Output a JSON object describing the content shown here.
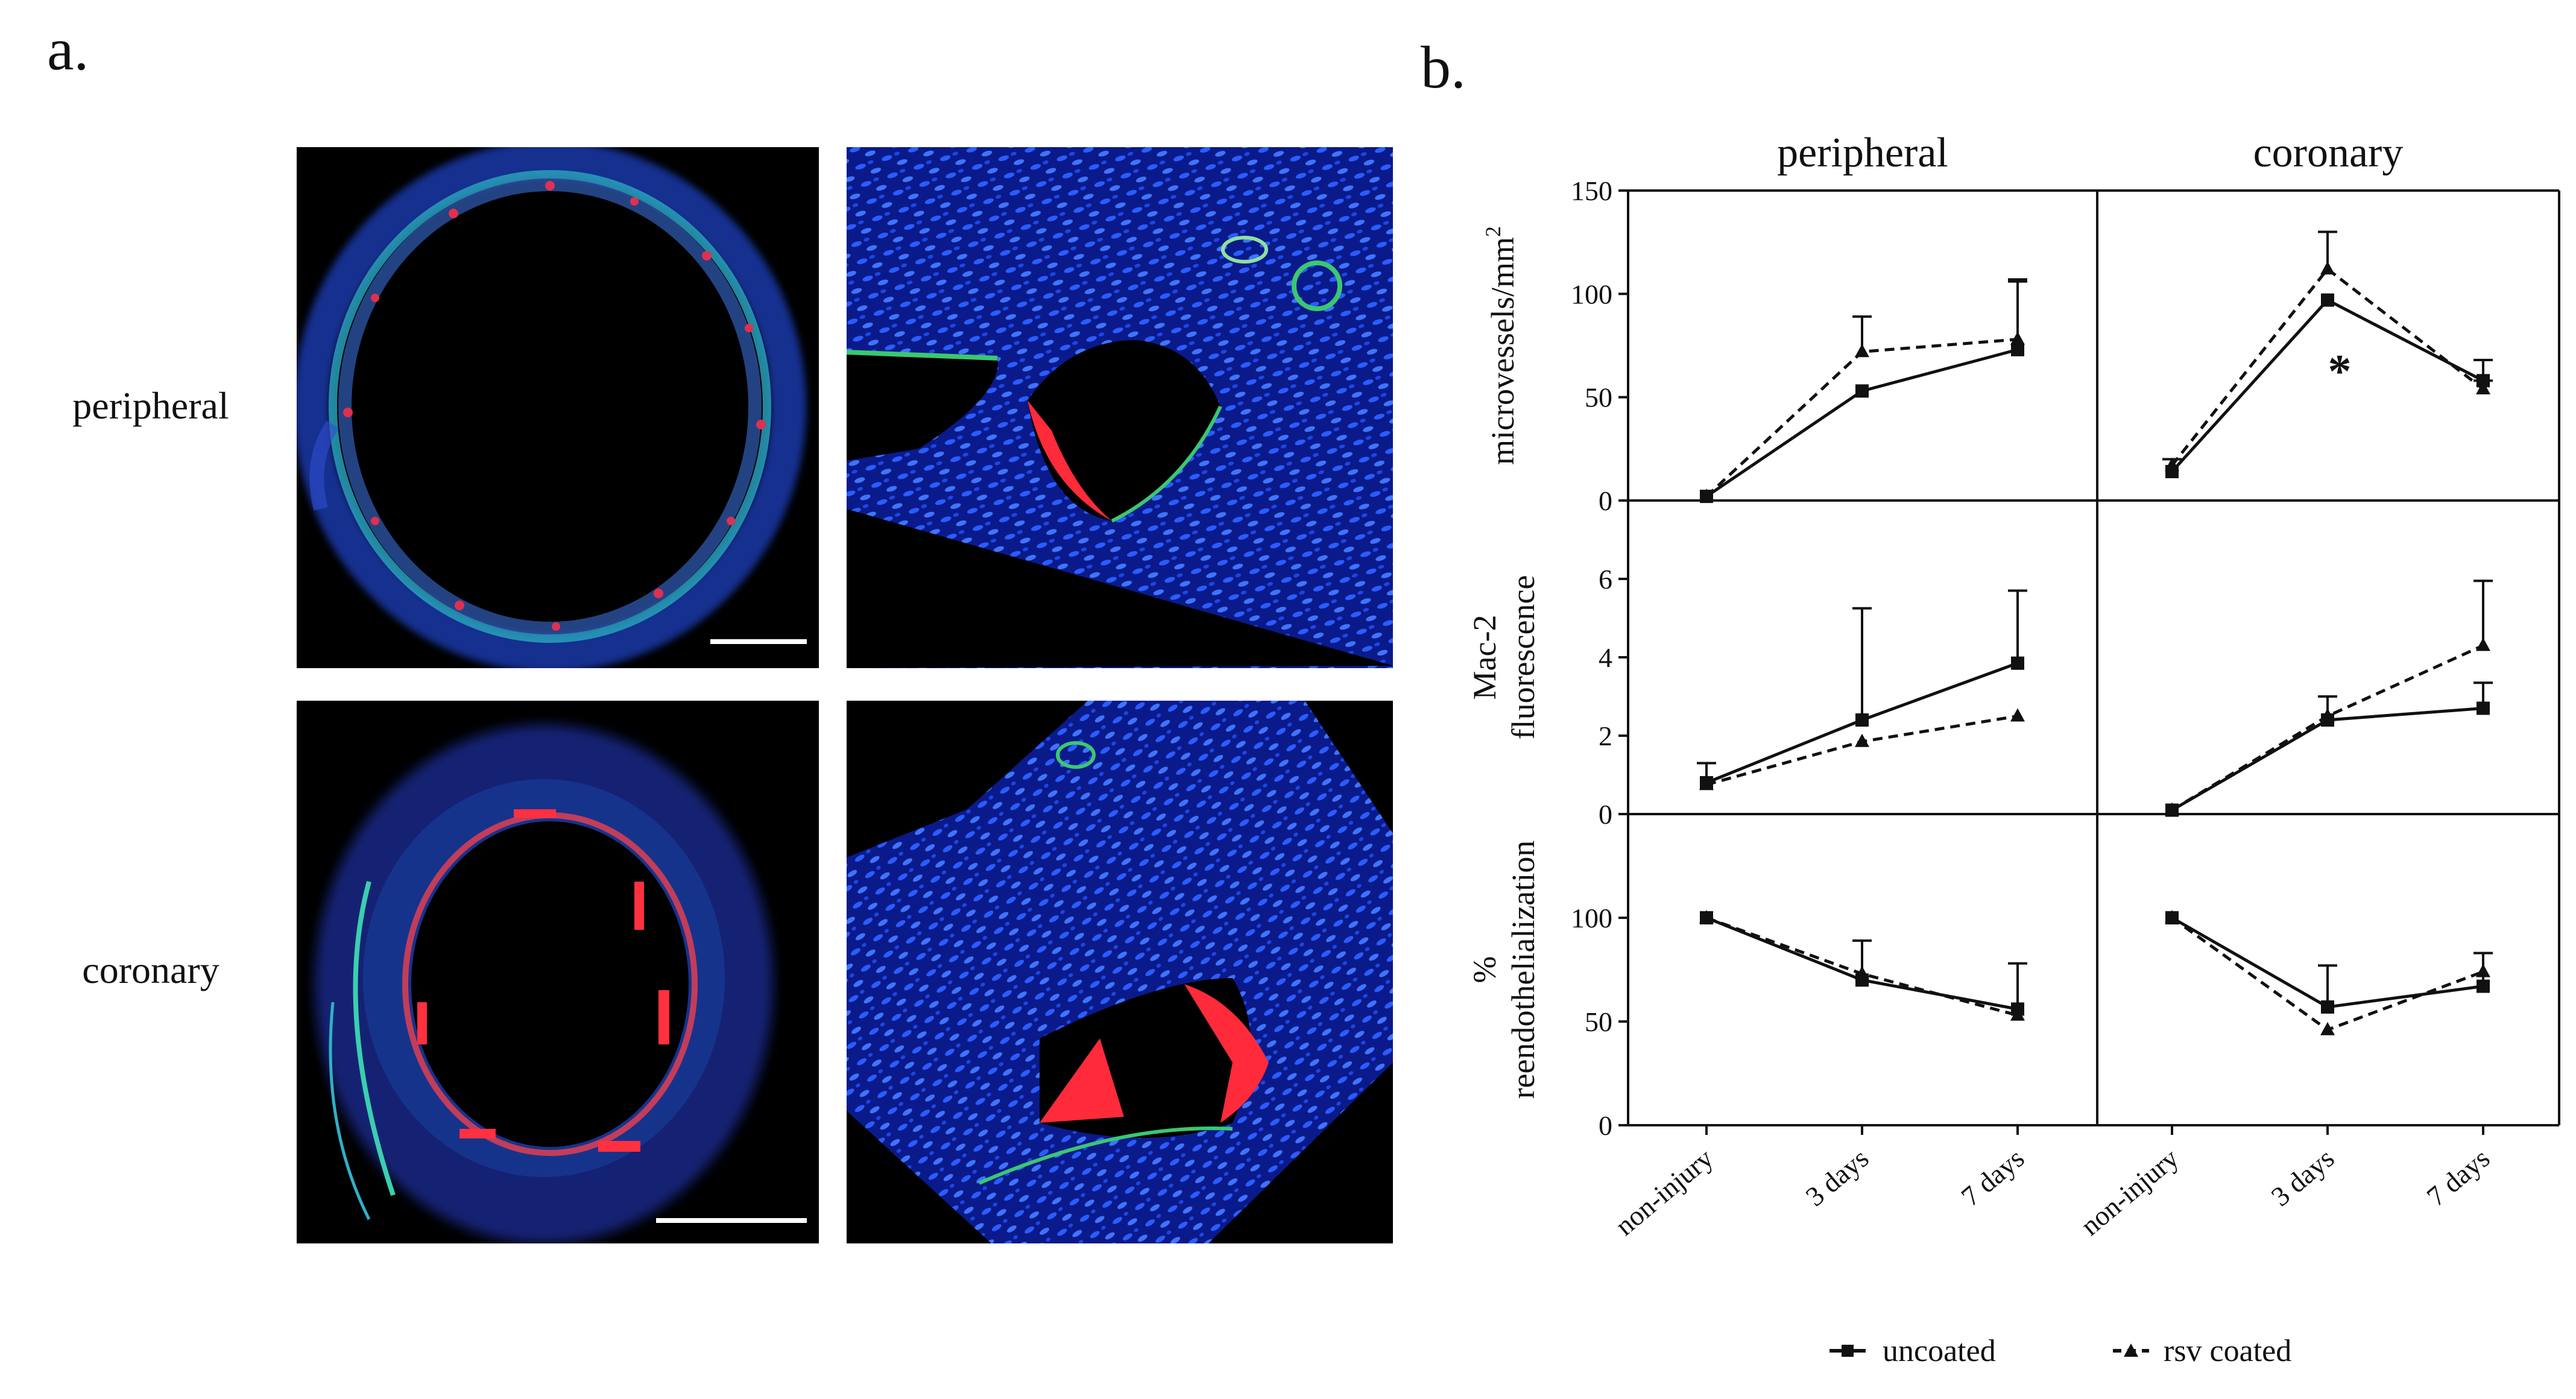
{
  "panel_a": {
    "letter": "a.",
    "row_labels": [
      "peripheral",
      "coronary"
    ]
  },
  "panel_b": {
    "letter": "b."
  },
  "legend": {
    "uncoated": "uncoated",
    "rsv": "rsv coated"
  },
  "chart_data": [
    {
      "type": "line",
      "panel": "peripheral / microvessels",
      "title": "peripheral",
      "ylabel": "microvessels/mm",
      "ylabel_sup": "2",
      "categories": [
        "non-injury",
        "3 days",
        "7 days"
      ],
      "ylim": [
        0,
        150
      ],
      "yticks": [
        0,
        50,
        100,
        150
      ],
      "series": [
        {
          "name": "uncoated",
          "values": [
            2,
            53,
            73
          ],
          "err": [
            0,
            0,
            33
          ],
          "dash": false,
          "marker": "square"
        },
        {
          "name": "rsv coated",
          "values": [
            2,
            72,
            78
          ],
          "err": [
            0,
            17,
            29
          ],
          "dash": true,
          "marker": "triangle"
        }
      ],
      "annotation": ""
    },
    {
      "type": "line",
      "panel": "coronary / microvessels",
      "title": "coronary",
      "categories": [
        "non-injury",
        "3 days",
        "7 days"
      ],
      "ylim": [
        0,
        150
      ],
      "yticks": [],
      "series": [
        {
          "name": "uncoated",
          "values": [
            14,
            97,
            58
          ],
          "err": [
            0,
            0,
            10
          ],
          "dash": false,
          "marker": "square"
        },
        {
          "name": "rsv coated",
          "values": [
            17,
            112,
            54
          ],
          "err": [
            3,
            18,
            4
          ],
          "dash": true,
          "marker": "triangle"
        }
      ],
      "annotation": "*"
    },
    {
      "type": "line",
      "panel": "peripheral / Mac-2",
      "ylabel": [
        "Mac-2",
        "fluorescence"
      ],
      "categories": [
        "non-injury",
        "3 days",
        "7 days"
      ],
      "ylim": [
        0,
        8
      ],
      "yticks": [
        0,
        2,
        4,
        6
      ],
      "series": [
        {
          "name": "uncoated",
          "values": [
            0.8,
            2.4,
            3.85
          ],
          "err": [
            0.5,
            2.85,
            1.85
          ],
          "dash": false,
          "marker": "square"
        },
        {
          "name": "rsv coated",
          "values": [
            0.75,
            1.85,
            2.5
          ],
          "err": [
            0,
            0,
            0
          ],
          "dash": true,
          "marker": "triangle"
        }
      ]
    },
    {
      "type": "line",
      "panel": "coronary / Mac-2",
      "categories": [
        "non-injury",
        "3 days",
        "7 days"
      ],
      "ylim": [
        0,
        8
      ],
      "yticks": [],
      "series": [
        {
          "name": "uncoated",
          "values": [
            0.1,
            2.4,
            2.7
          ],
          "err": [
            0,
            0,
            0.65
          ],
          "dash": false,
          "marker": "square"
        },
        {
          "name": "rsv coated",
          "values": [
            0.1,
            2.5,
            4.3
          ],
          "err": [
            0,
            0.5,
            1.65
          ],
          "dash": true,
          "marker": "triangle"
        }
      ]
    },
    {
      "type": "line",
      "panel": "peripheral / reendothelialization",
      "ylabel": [
        "%",
        "reendothelialization"
      ],
      "categories": [
        "non-injury",
        "3 days",
        "7 days"
      ],
      "ylim": [
        0,
        150
      ],
      "yticks": [
        0,
        50,
        100
      ],
      "series": [
        {
          "name": "uncoated",
          "values": [
            100,
            70,
            56
          ],
          "err": [
            0,
            0,
            22
          ],
          "dash": false,
          "marker": "square"
        },
        {
          "name": "rsv coated",
          "values": [
            100,
            73,
            53
          ],
          "err": [
            0,
            16,
            0
          ],
          "dash": true,
          "marker": "triangle"
        }
      ]
    },
    {
      "type": "line",
      "panel": "coronary / reendothelialization",
      "categories": [
        "non-injury",
        "3 days",
        "7 days"
      ],
      "ylim": [
        0,
        150
      ],
      "yticks": [],
      "series": [
        {
          "name": "uncoated",
          "values": [
            100,
            57,
            67
          ],
          "err": [
            0,
            20,
            16
          ],
          "dash": false,
          "marker": "square"
        },
        {
          "name": "rsv coated",
          "values": [
            100,
            46,
            74
          ],
          "err": [
            0,
            0,
            0
          ],
          "dash": true,
          "marker": "triangle"
        }
      ]
    }
  ]
}
